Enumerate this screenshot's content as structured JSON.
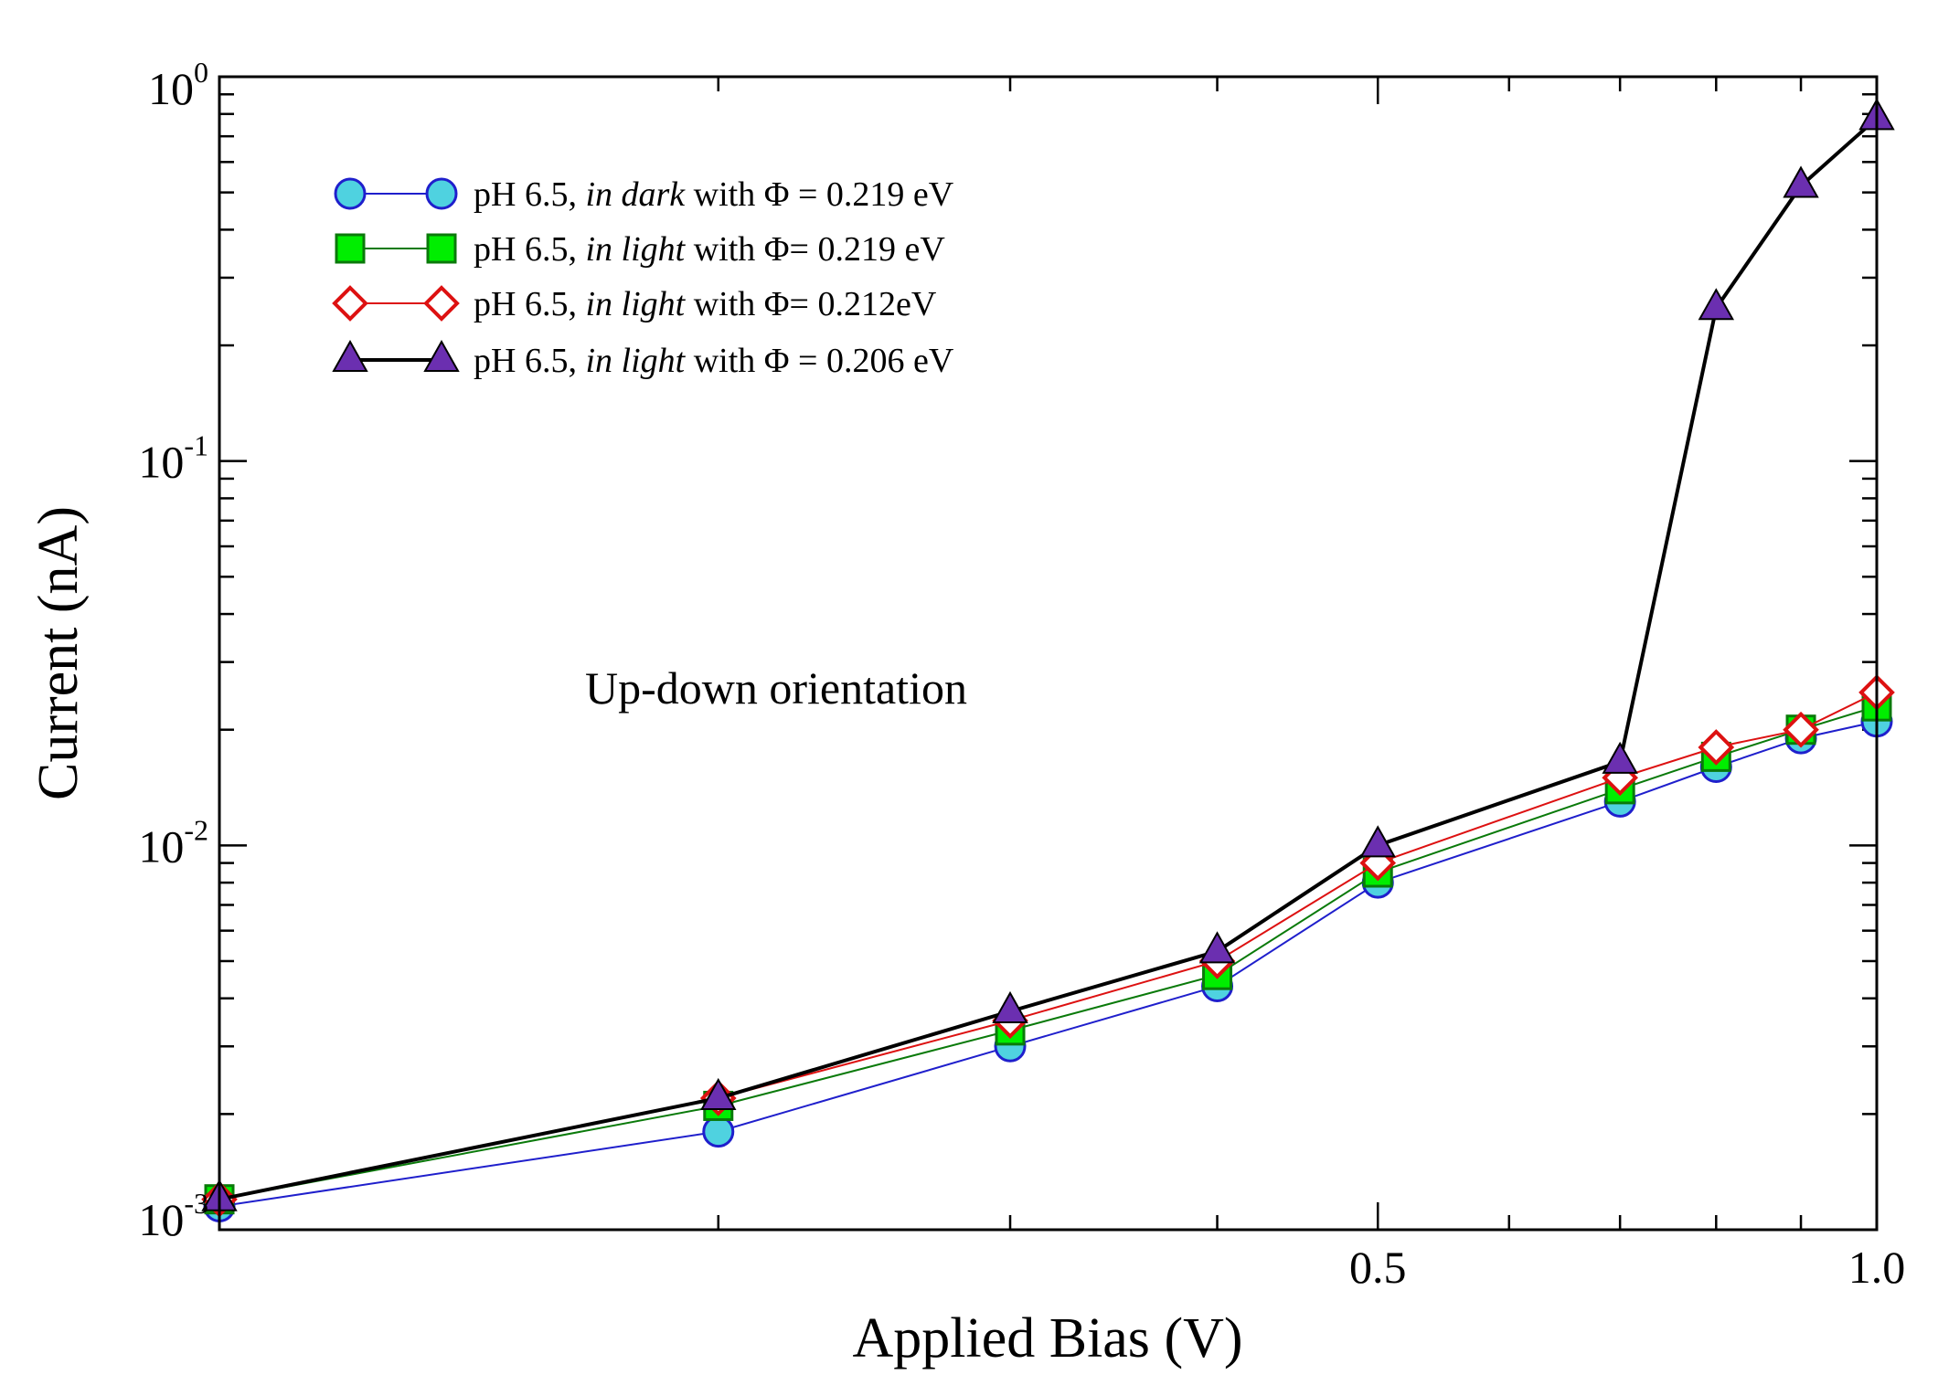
{
  "chart_data": {
    "type": "line",
    "title": "",
    "xlabel": "Applied Bias (V)",
    "ylabel": "Current (nA)",
    "xscale": "log",
    "yscale": "log",
    "xlim": [
      0.1,
      1.0
    ],
    "ylim": [
      0.001,
      1.0
    ],
    "grid": false,
    "legend_position": "top-left",
    "x_ticks": [
      {
        "value": 0.5,
        "label": "0.5"
      },
      {
        "value": 1.0,
        "label": "1.0"
      }
    ],
    "y_ticks": [
      {
        "value": 0.001,
        "base": "10",
        "exp": "-3"
      },
      {
        "value": 0.01,
        "base": "10",
        "exp": "-2"
      },
      {
        "value": 0.1,
        "base": "10",
        "exp": "-1"
      },
      {
        "value": 1.0,
        "base": "10",
        "exp": "0"
      }
    ],
    "annotation": "Up-down orientation",
    "series": [
      {
        "name": "pH 6.5, in dark with Φ = 0.219 eV",
        "legend_parts": [
          "pH 6.5, ",
          "in dark",
          " with Φ = 0.219 eV"
        ],
        "marker": "circle",
        "color": "#1f1fcc",
        "fill": "#4fd2e0",
        "x": [
          0.1,
          0.2,
          0.3,
          0.4,
          0.5,
          0.7,
          0.8,
          0.9,
          1.0
        ],
        "y": [
          0.00115,
          0.0018,
          0.003,
          0.0043,
          0.008,
          0.013,
          0.016,
          0.019,
          0.021
        ]
      },
      {
        "name": "pH 6.5, in light with Φ= 0.219 eV",
        "legend_parts": [
          "pH 6.5, ",
          "in light",
          "  with Φ= 0.219 eV"
        ],
        "marker": "square",
        "color": "#0a7a0a",
        "fill": "#00ee00",
        "x": [
          0.1,
          0.2,
          0.3,
          0.4,
          0.5,
          0.7,
          0.8,
          0.9,
          1.0
        ],
        "y": [
          0.0012,
          0.0021,
          0.0033,
          0.0046,
          0.0085,
          0.014,
          0.017,
          0.02,
          0.023
        ]
      },
      {
        "name": "pH 6.5, in light with Φ= 0.212eV",
        "legend_parts": [
          "pH 6.5,  ",
          "in light",
          " with Φ= 0.212eV"
        ],
        "marker": "diamond",
        "color": "#dd1111",
        "fill": "#ffffff",
        "x": [
          0.1,
          0.2,
          0.3,
          0.4,
          0.5,
          0.7,
          0.8,
          0.9,
          1.0
        ],
        "y": [
          0.0012,
          0.0022,
          0.0035,
          0.005,
          0.009,
          0.015,
          0.018,
          0.02,
          0.025
        ]
      },
      {
        "name": "pH 6.5, in light with Φ = 0.206 eV",
        "legend_parts": [
          "pH 6.5,  ",
          "in light",
          " with Φ = 0.206 eV"
        ],
        "marker": "triangle",
        "color": "#000000",
        "fill": "#6b2fb0",
        "x": [
          0.1,
          0.2,
          0.3,
          0.4,
          0.5,
          0.7,
          0.8,
          0.9,
          1.0
        ],
        "y": [
          0.0012,
          0.0022,
          0.0037,
          0.0053,
          0.01,
          0.0165,
          0.25,
          0.52,
          0.78
        ]
      }
    ]
  }
}
